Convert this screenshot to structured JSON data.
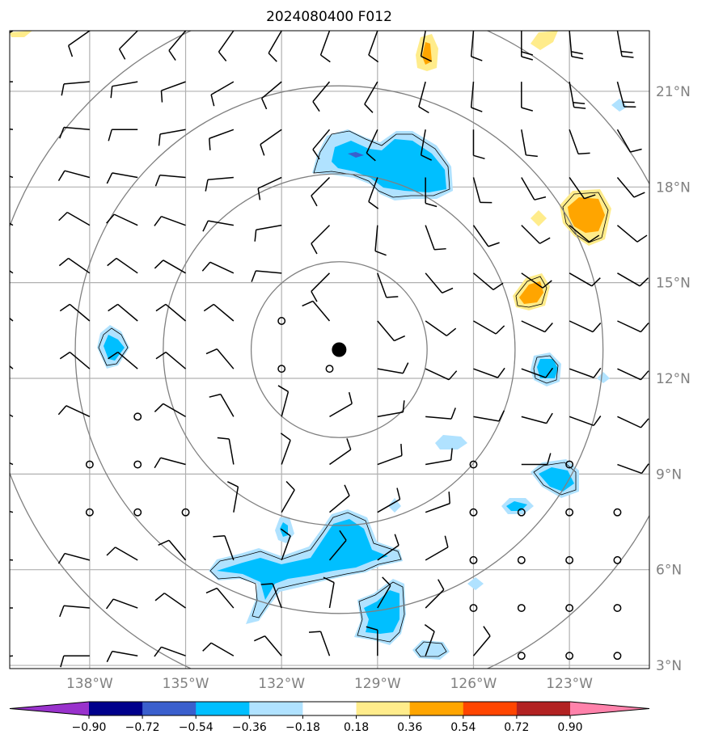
{
  "title": "2024080400 F012",
  "map": {
    "lat_range": [
      2.9,
      22.9
    ],
    "lon_range": [
      -140.5,
      -120.5
    ],
    "lat_labels": [
      "21°N",
      "18°N",
      "15°N",
      "12°N",
      "9°N",
      "6°N",
      "3°N"
    ],
    "lat_values": [
      21,
      18,
      15,
      12,
      9,
      6,
      3
    ],
    "lon_labels": [
      "138°W",
      "135°W",
      "132°W",
      "129°W",
      "126°W",
      "123°W"
    ],
    "lon_values": [
      -138,
      -135,
      -132,
      -129,
      -126,
      -123
    ],
    "center": {
      "lon": -130.2,
      "lat": 12.9
    },
    "range_rings_deg": [
      2.75,
      5.5,
      8.25,
      11.0
    ],
    "colors": {
      "grid": "#b0b0b0",
      "rings": "#808080",
      "neg_090": "#9932cc",
      "neg_072": "#00008b",
      "neg_054": "#3a5fcd",
      "neg_036": "#00bfff",
      "neg_018": "#b0e2ff",
      "pos_018": "#ffec8b",
      "pos_036": "#ffa500",
      "pos_054": "#ff4500",
      "pos_072": "#b22222",
      "pos_090": "#ff82ab"
    }
  },
  "colorbar": {
    "labels": [
      "−0.90",
      "−0.72",
      "−0.54",
      "−0.36",
      "−0.18",
      "0.18",
      "0.36",
      "0.54",
      "0.72",
      "0.90"
    ],
    "colors": [
      "#9932cc",
      "#00008b",
      "#3a5fcd",
      "#00bfff",
      "#b0e2ff",
      "#ffffff",
      "#ffec8b",
      "#ffa500",
      "#ff4500",
      "#b22222",
      "#ff82ab"
    ]
  },
  "wind": {
    "cols_lon": [
      -140.4,
      -138.0,
      -136.5,
      -135.0,
      -133.5,
      -132.0,
      -130.5,
      -129.0,
      -127.5,
      -126.0,
      -124.5,
      -123.0,
      -121.5
    ],
    "rows_lat": [
      22.9,
      21.3,
      19.8,
      18.3,
      16.8,
      15.3,
      13.8,
      12.3,
      10.8,
      9.3,
      7.8,
      6.3,
      4.8,
      3.3
    ],
    "rows": [
      [
        "240:1",
        "235:1",
        "225:1",
        "220:1",
        "215:1",
        "210:1",
        "200:1",
        "200:1",
        "190:1",
        "185:1",
        "180:2",
        "175:2",
        "170:2"
      ],
      [
        "270:1",
        "265:1",
        "260:1",
        "250:1",
        "240:1",
        "230:1",
        "220:1",
        "210:1",
        "195:1",
        "185:1",
        "180:1",
        "170:2",
        "165:2"
      ],
      [
        "280:1",
        "275:1",
        "270:1",
        "260:1",
        "250:1",
        "235:1",
        "220:1",
        "205:1",
        "190:1",
        "180:1",
        "170:1",
        "160:1",
        "150:1"
      ],
      [
        "290:1",
        "285:1",
        "280:1",
        "275:1",
        "265:1",
        "245:1",
        "225:1",
        "200:1",
        "180:1",
        "165:1",
        "150:1",
        "145:1",
        "140:1"
      ],
      [
        "300:1",
        "300:1",
        "295:1",
        "290:1",
        "280:1",
        "260:1",
        "225:1",
        "185:1",
        "160:1",
        "145:1",
        "135:1",
        "130:1",
        "130:1"
      ],
      [
        "305:1",
        "305:1",
        "305:1",
        "300:1",
        "295:1",
        "275:1",
        "225:1",
        "160:1",
        "140:1",
        "130:1",
        "125:1",
        "120:1",
        "120:1"
      ],
      [
        "310:1",
        "310:1",
        "310:1",
        "310:1",
        "310:1",
        "0:0",
        "320:1",
        "140:1",
        "125:1",
        "120:1",
        "115:1",
        "115:1",
        "115:1"
      ],
      [
        "310:1",
        "310:1",
        "310:1",
        "310:1",
        "320:1",
        "0:0",
        "0:0",
        "100:1",
        "115:1",
        "110:1",
        "110:1",
        "110:1",
        "115:1"
      ],
      [
        "300:1",
        "295:1",
        "0:0",
        "300:1",
        "330:1",
        "15:1",
        "60:1",
        "80:1",
        "95:1",
        "100:1",
        "105:1",
        "110:1",
        "115:1"
      ],
      [
        "295:1",
        "0:0",
        "0:0",
        "285:1",
        "350:1",
        "20:1",
        "55:1",
        "70:1",
        "80:1",
        "0:0",
        "90:1",
        "0:0",
        "110:1"
      ],
      [
        "285:1",
        "0:0",
        "0:0",
        "0:0",
        "10:1",
        "30:1",
        "50:1",
        "60:1",
        "70:1",
        "0:0",
        "0:0",
        "0:0",
        "0:0"
      ],
      [
        "275:1",
        "285:1",
        "300:1",
        "320:1",
        "340:1",
        "20:1",
        "40:1",
        "55:1",
        "60:1",
        "0:0",
        "0:0",
        "0:0",
        "0:0"
      ],
      [
        "270:1",
        "275:1",
        "290:1",
        "305:1",
        "320:1",
        "340:1",
        "10:1",
        "30:1",
        "45:1",
        "0:0",
        "0:0",
        "0:0",
        "0:0"
      ],
      [
        "265:1",
        "270:1",
        "280:1",
        "290:1",
        "300:1",
        "320:1",
        "340:1",
        "0:1",
        "20:1",
        "40:1",
        "0:0",
        "0:0",
        "0:0"
      ]
    ]
  }
}
